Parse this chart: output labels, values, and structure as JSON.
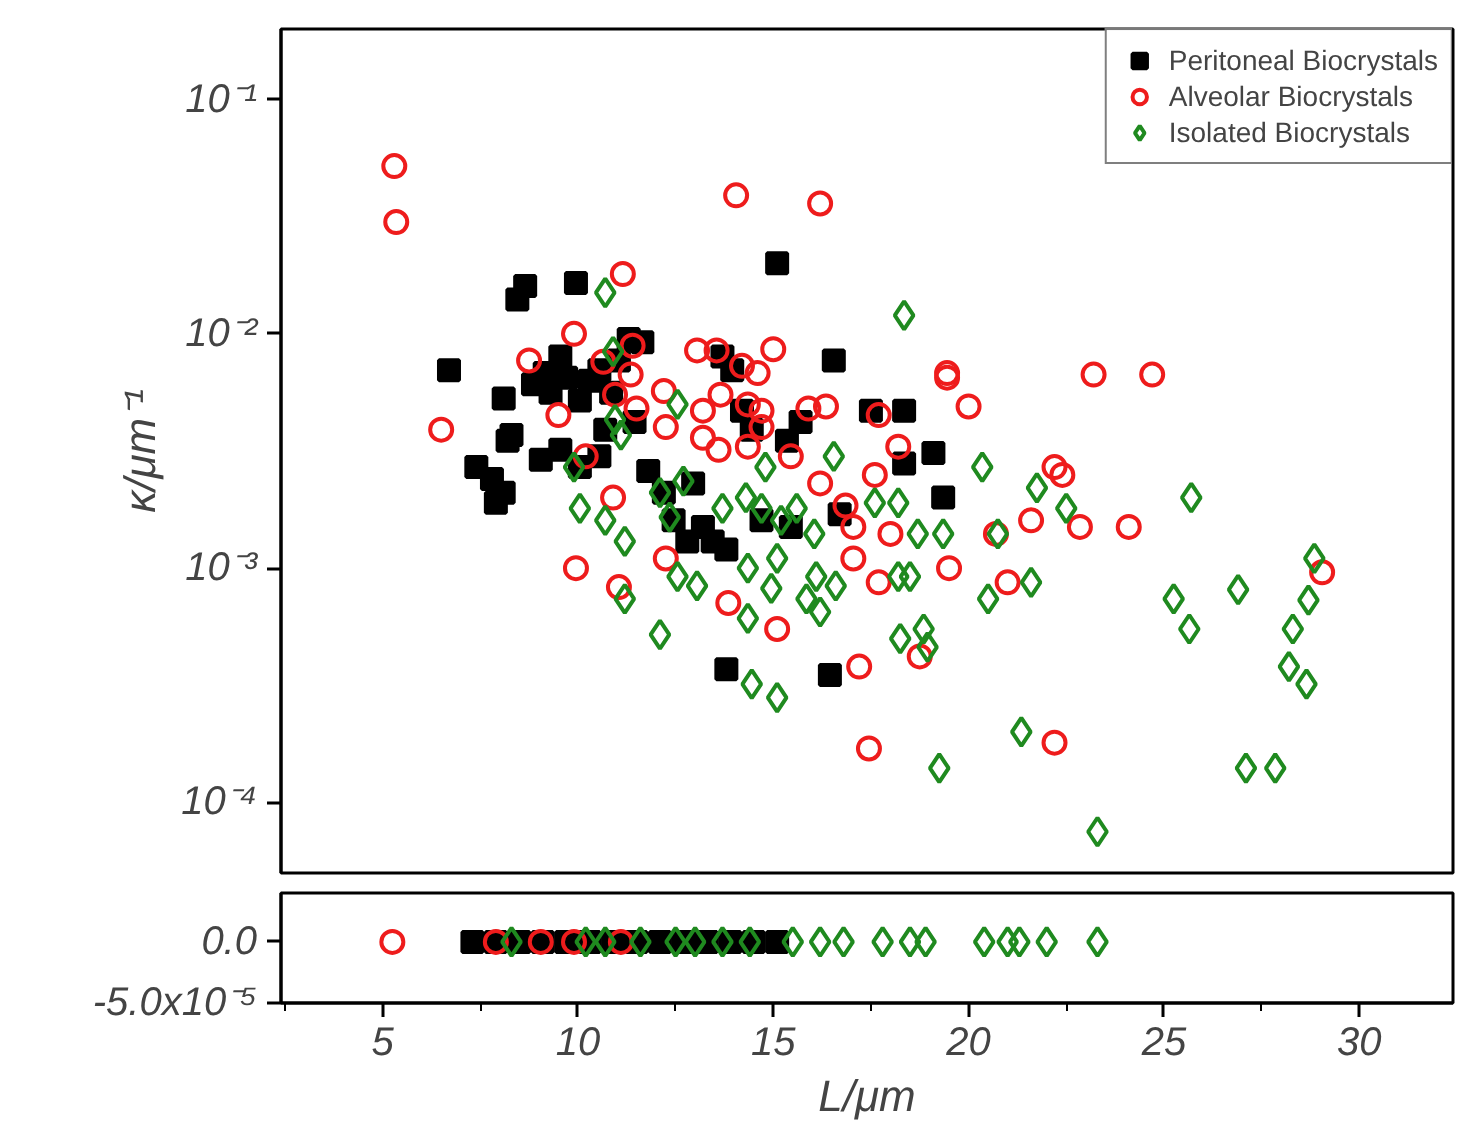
{
  "chart_data": [
    {
      "type": "scatter",
      "ylabel": "κ/μm⁻¹",
      "log": "y",
      "xlim": [
        2.4,
        32.4
      ],
      "ylim": [
        5e-05,
        0.2
      ],
      "yticks": [
        {
          "value": 0.1,
          "label": "10⁻¹"
        },
        {
          "value": 0.01,
          "label": "10⁻²"
        },
        {
          "value": 0.001,
          "label": "10⁻³"
        },
        {
          "value": 0.0001,
          "label": "10⁻⁴"
        }
      ],
      "tick_labels": "y",
      "grid": false,
      "legend": "top right",
      "series": [
        {
          "name": "Peritoneal Biocrystals",
          "color": "#000000",
          "marker": "square",
          "x": [
            6.7,
            7.4,
            7.8,
            8.1,
            7.9,
            8.45,
            8.65,
            9.95,
            8.1,
            8.2,
            8.3,
            8.85,
            9.15,
            9.3,
            9.55,
            9.7,
            10.05,
            10.3,
            10.55,
            10.85,
            9.05,
            9.55,
            10.05,
            10.55,
            10.7,
            11.05,
            11.3,
            11.65,
            11.45,
            11.8,
            12.2,
            12.45,
            12.8,
            12.95,
            13.2,
            13.45,
            13.7,
            13.95,
            13.8,
            14.2,
            14.45,
            15.1,
            13.8,
            16.55,
            17.5,
            18.35,
            18.35,
            19.1,
            19.35,
            16.45,
            15.35,
            15.7,
            16.7,
            14.7,
            15.45
          ],
          "values": [
            0.007,
            0.0027,
            0.0024,
            0.0021,
            0.0019,
            0.014,
            0.016,
            0.0165,
            0.0053,
            0.0035,
            0.0037,
            0.0061,
            0.0068,
            0.0056,
            0.008,
            0.0065,
            0.0052,
            0.0063,
            0.007,
            0.0056,
            0.0029,
            0.0032,
            0.0027,
            0.003,
            0.0039,
            0.0077,
            0.0095,
            0.0092,
            0.0042,
            0.0026,
            0.0021,
            0.0016,
            0.0013,
            0.0023,
            0.0015,
            0.0013,
            0.008,
            0.007,
            0.0012,
            0.0047,
            0.0039,
            0.02,
            0.00037,
            0.0077,
            0.0047,
            0.0047,
            0.0028,
            0.0031,
            0.002,
            0.00035,
            0.0035,
            0.0042,
            0.0017,
            0.0016,
            0.0015
          ]
        },
        {
          "name": "Alveolar Biocrystals",
          "color": "#ee1c1c",
          "marker": "circle",
          "x": [
            5.3,
            5.35,
            6.5,
            8.75,
            9.9,
            9.5,
            11.15,
            11.4,
            10.65,
            11.35,
            10.95,
            11.5,
            12.2,
            12.25,
            10.2,
            10.9,
            9.95,
            11.05,
            12.25,
            14.05,
            16.2,
            13.05,
            13.55,
            14.2,
            14.6,
            15.0,
            13.65,
            13.2,
            14.35,
            14.7,
            14.7,
            15.9,
            16.35,
            17.7,
            18.2,
            19.45,
            19.45,
            20.0,
            13.2,
            13.6,
            14.35,
            15.45,
            16.2,
            17.6,
            16.85,
            17.05,
            17.05,
            18.0,
            17.7,
            19.5,
            21.6,
            21.0,
            22.2,
            13.85,
            15.1,
            17.2,
            18.75,
            17.45,
            22.2,
            23.2,
            24.7,
            22.4,
            22.85,
            24.1,
            29.05,
            20.7
          ],
          "values": [
            0.052,
            0.03,
            0.0039,
            0.0077,
            0.01,
            0.0045,
            0.018,
            0.0089,
            0.0076,
            0.0067,
            0.0055,
            0.0048,
            0.0057,
            0.004,
            0.003,
            0.002,
            0.001,
            0.00083,
            0.0011,
            0.039,
            0.036,
            0.0085,
            0.0085,
            0.0073,
            0.0068,
            0.0086,
            0.0055,
            0.0047,
            0.005,
            0.0047,
            0.004,
            0.0048,
            0.0049,
            0.0045,
            0.0033,
            0.0068,
            0.0065,
            0.0049,
            0.0036,
            0.0032,
            0.0033,
            0.003,
            0.0023,
            0.0025,
            0.00185,
            0.0015,
            0.0011,
            0.0014,
            0.00087,
            0.001,
            0.0016,
            0.00087,
            0.0027,
            0.00071,
            0.00055,
            0.00038,
            0.00042,
            0.00017,
            0.00018,
            0.0067,
            0.0067,
            0.0025,
            0.0015,
            0.0015,
            0.00096,
            0.0014
          ]
        },
        {
          "name": "Isolated Biocrystals",
          "color": "#1f8a1f",
          "marker": "diamond",
          "x": [
            10.7,
            10.9,
            10.95,
            11.1,
            9.9,
            10.05,
            10.7,
            11.2,
            11.2,
            12.1,
            12.1,
            12.35,
            12.55,
            12.55,
            18.35,
            12.7,
            14.8,
            14.3,
            13.7,
            14.7,
            15.6,
            16.55,
            15.2,
            16.05,
            15.1,
            14.35,
            13.05,
            14.95,
            16.1,
            16.6,
            15.85,
            16.2,
            14.35,
            17.6,
            18.2,
            18.7,
            19.35,
            18.2,
            18.5,
            20.35,
            20.75,
            20.5,
            21.6,
            21.75,
            18.25,
            18.85,
            18.95,
            14.45,
            15.1,
            19.25,
            21.35,
            22.5,
            25.7,
            25.25,
            25.65,
            26.9,
            28.85,
            28.7,
            28.3,
            28.2,
            28.65,
            27.1,
            27.85,
            23.3
          ],
          "values": [
            0.015,
            0.0084,
            0.0043,
            0.0037,
            0.0027,
            0.0018,
            0.0016,
            0.0013,
            0.00074,
            0.00052,
            0.0021,
            0.00165,
            0.005,
            0.00092,
            0.012,
            0.00235,
            0.0027,
            0.002,
            0.0018,
            0.0018,
            0.0018,
            0.003,
            0.0016,
            0.0014,
            0.0011,
            0.001,
            0.00084,
            0.00082,
            0.00092,
            0.00084,
            0.00074,
            0.00065,
            0.00061,
            0.0019,
            0.0019,
            0.0014,
            0.0014,
            0.00092,
            0.00092,
            0.0027,
            0.0014,
            0.00074,
            0.00087,
            0.0022,
            0.0005,
            0.00055,
            0.00046,
            0.00032,
            0.00028,
            0.00014,
            0.0002,
            0.0018,
            0.002,
            0.00074,
            0.00055,
            0.00081,
            0.0011,
            0.00073,
            0.00055,
            0.00038,
            0.00032,
            0.00014,
            0.00014,
            7.5e-05
          ]
        }
      ]
    },
    {
      "type": "scatter",
      "xlabel": "L/μm",
      "xlim": [
        2.4,
        32.4
      ],
      "ylim": [
        -5e-05,
        4e-05
      ],
      "xticks": [
        5,
        10,
        15,
        20,
        25,
        30
      ],
      "yticks": [
        {
          "value": 0,
          "label": "0.0"
        },
        {
          "value": -5e-05,
          "label": "-5.0x10⁻⁵"
        }
      ],
      "grid": false,
      "legend": false,
      "series": [
        {
          "color": "#000000",
          "marker": "square",
          "x": [
            7.3,
            7.9,
            8.5,
            9.1,
            9.7,
            10.3,
            10.9,
            11.5,
            12.1,
            12.7,
            13.3,
            13.9,
            14.5,
            15.1
          ],
          "values": [
            0,
            0,
            0,
            0,
            0,
            0,
            0,
            0,
            0,
            0,
            0,
            0,
            0,
            0
          ]
        },
        {
          "color": "#ee1c1c",
          "marker": "circle",
          "x": [
            5.25,
            7.9,
            9.05,
            9.9,
            11.1
          ],
          "values": [
            0,
            0,
            0,
            0,
            0
          ]
        },
        {
          "color": "#1f8a1f",
          "marker": "diamond",
          "x": [
            8.3,
            10.2,
            10.7,
            11.6,
            12.5,
            13.0,
            13.7,
            14.4,
            15.5,
            16.2,
            16.8,
            17.8,
            18.5,
            18.9,
            20.4,
            21.0,
            21.3,
            22.0,
            23.3
          ],
          "values": [
            0,
            0,
            0,
            0,
            0,
            0,
            0,
            0,
            0,
            0,
            0,
            0,
            0,
            0,
            0,
            0,
            0,
            0,
            0
          ]
        }
      ]
    }
  ]
}
